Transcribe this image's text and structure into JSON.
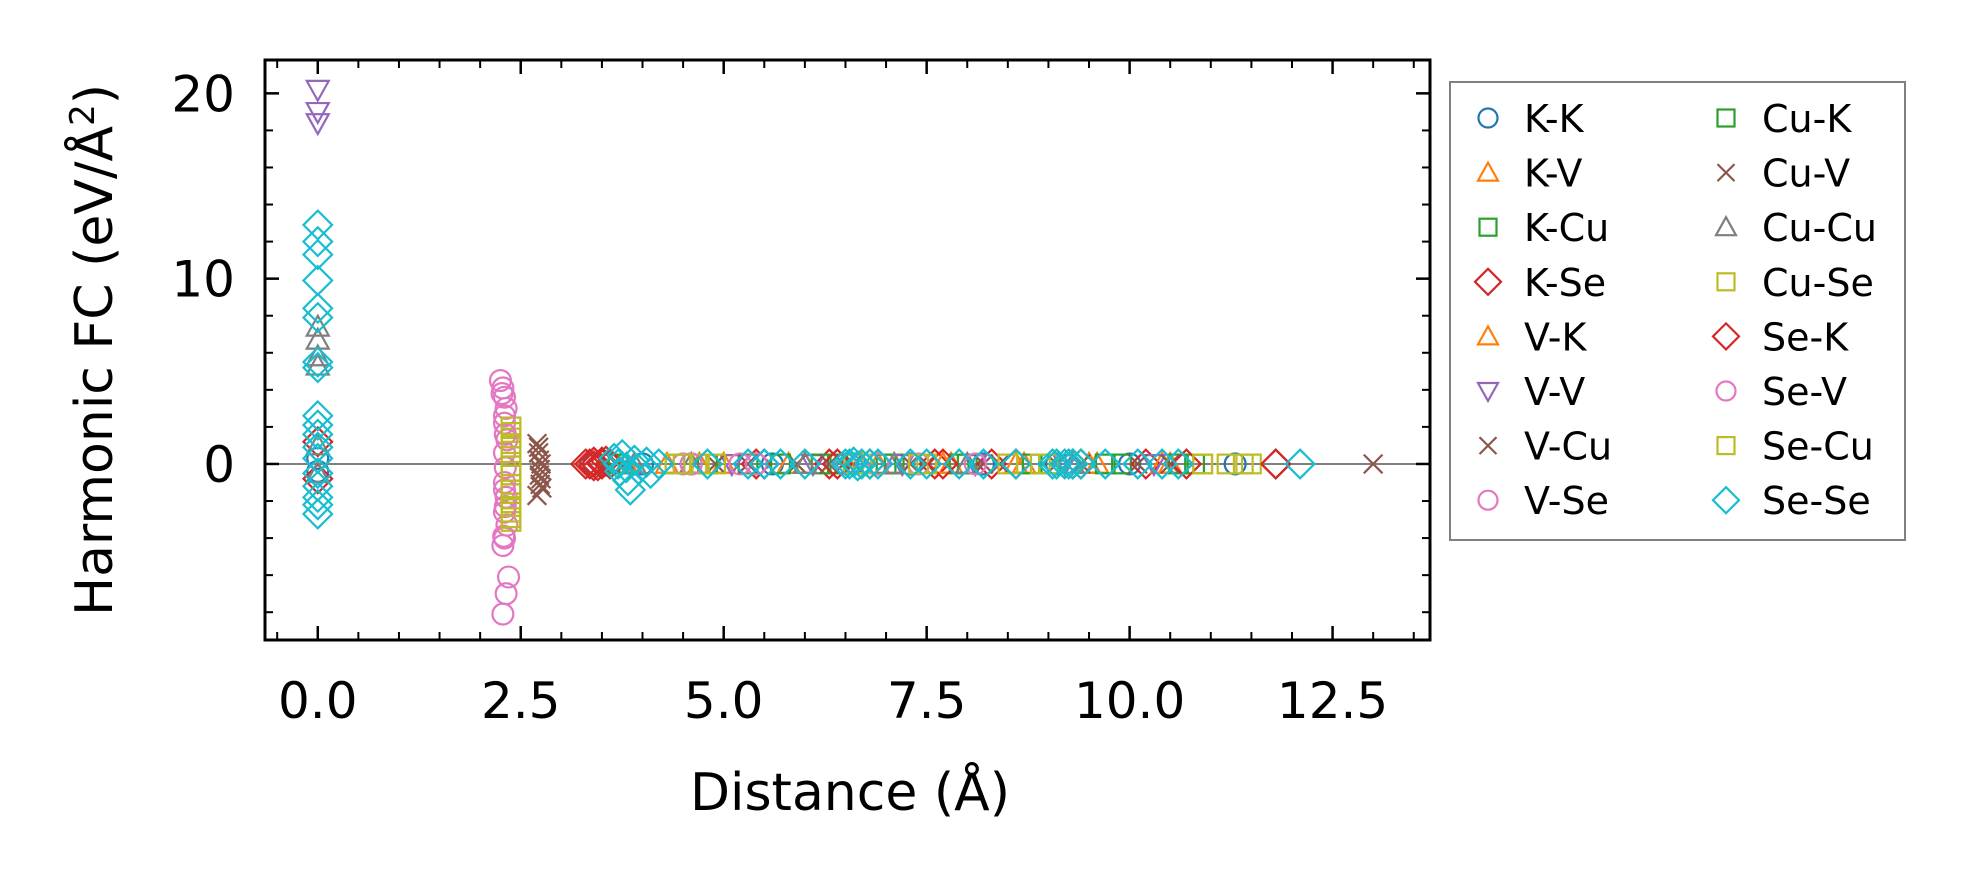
{
  "chart_data": {
    "type": "scatter",
    "title": "",
    "xlabel": "Distance (Å)",
    "ylabel_prefix": "Harmonic FC (eV/Å",
    "ylabel_sup": "2",
    "ylabel_suffix": ")",
    "xlim": [
      -0.65,
      13.7
    ],
    "ylim": [
      -9.5,
      21.8
    ],
    "x_ticks": [
      0.0,
      2.5,
      5.0,
      7.5,
      10.0,
      12.5
    ],
    "x_tick_labels": [
      "0.0",
      "2.5",
      "5.0",
      "7.5",
      "10.0",
      "12.5"
    ],
    "y_ticks": [
      0,
      10,
      20
    ],
    "y_tick_labels": [
      "0",
      "10",
      "20"
    ],
    "zero_line": true,
    "legend_position": "outside-right",
    "series": [
      {
        "name": "K-K",
        "marker": "circle",
        "color": "#1f77b4",
        "points": [
          [
            0,
            0.3
          ],
          [
            0,
            -0.4
          ],
          [
            3.4,
            0
          ],
          [
            4.0,
            0
          ],
          [
            4.6,
            0
          ],
          [
            5.6,
            0
          ],
          [
            6.6,
            0
          ],
          [
            7.3,
            0
          ],
          [
            8.2,
            0
          ],
          [
            9.1,
            0
          ],
          [
            10.0,
            0
          ],
          [
            11.3,
            0
          ]
        ]
      },
      {
        "name": "K-V",
        "marker": "triangle-up",
        "color": "#ff7f0e",
        "points": [
          [
            3.8,
            0
          ],
          [
            4.3,
            0
          ],
          [
            5.0,
            0
          ],
          [
            6.0,
            0
          ],
          [
            6.9,
            0
          ],
          [
            7.8,
            0
          ],
          [
            8.7,
            0
          ],
          [
            9.6,
            0
          ],
          [
            10.5,
            0
          ]
        ]
      },
      {
        "name": "K-Cu",
        "marker": "square",
        "color": "#2ca02c",
        "points": [
          [
            3.6,
            0
          ],
          [
            4.4,
            0
          ],
          [
            5.3,
            0
          ],
          [
            6.4,
            0
          ],
          [
            7.1,
            0
          ],
          [
            8.0,
            0
          ],
          [
            9.0,
            0
          ],
          [
            9.9,
            0
          ],
          [
            10.8,
            0
          ]
        ]
      },
      {
        "name": "K-Se",
        "marker": "diamond",
        "color": "#d62728",
        "points": [
          [
            0,
            1.2
          ],
          [
            0,
            -0.8
          ],
          [
            3.3,
            0
          ],
          [
            3.4,
            0.1
          ],
          [
            3.45,
            -0.1
          ],
          [
            3.5,
            0
          ],
          [
            3.55,
            0.15
          ],
          [
            5.4,
            0
          ],
          [
            6.3,
            0
          ],
          [
            6.8,
            0
          ],
          [
            7.6,
            0
          ],
          [
            8.3,
            0
          ],
          [
            9.3,
            0
          ],
          [
            10.2,
            0
          ],
          [
            11.8,
            0
          ]
        ]
      },
      {
        "name": "V-K",
        "marker": "triangle-up",
        "color": "#ff7f0e",
        "points": [
          [
            3.9,
            0
          ],
          [
            4.7,
            0
          ],
          [
            5.8,
            0
          ],
          [
            6.7,
            0
          ],
          [
            7.7,
            0
          ],
          [
            8.6,
            0
          ],
          [
            9.5,
            0
          ],
          [
            10.4,
            0
          ]
        ]
      },
      {
        "name": "V-V",
        "marker": "triangle-down",
        "color": "#9467bd",
        "points": [
          [
            0,
            20.2
          ],
          [
            0,
            19.0
          ],
          [
            0,
            18.4
          ],
          [
            5.1,
            0
          ],
          [
            6.1,
            0
          ],
          [
            7.2,
            0
          ],
          [
            8.1,
            0
          ],
          [
            9.2,
            0
          ],
          [
            10.3,
            0
          ]
        ]
      },
      {
        "name": "V-Cu",
        "marker": "x",
        "color": "#8c564b",
        "points": [
          [
            2.7,
            1.1
          ],
          [
            2.72,
            0.6
          ],
          [
            2.73,
            0.2
          ],
          [
            2.74,
            -0.3
          ],
          [
            2.75,
            -0.8
          ],
          [
            2.76,
            -1.3
          ],
          [
            2.7,
            -1.7
          ],
          [
            4.9,
            0
          ],
          [
            5.9,
            0
          ],
          [
            6.6,
            0
          ],
          [
            7.5,
            0
          ],
          [
            8.4,
            0
          ],
          [
            9.4,
            0
          ],
          [
            10.1,
            0
          ],
          [
            13.0,
            0
          ]
        ]
      },
      {
        "name": "V-Se",
        "marker": "circle",
        "color": "#e377c2",
        "points": [
          [
            2.25,
            4.5
          ],
          [
            2.28,
            4.1
          ],
          [
            2.3,
            3.6
          ],
          [
            2.32,
            3.0
          ],
          [
            2.3,
            2.2
          ],
          [
            2.33,
            1.3
          ],
          [
            2.3,
            0.6
          ],
          [
            2.31,
            -0.2
          ],
          [
            2.3,
            -1.0
          ],
          [
            2.32,
            -1.8
          ],
          [
            2.3,
            -2.6
          ],
          [
            2.33,
            -3.3
          ],
          [
            2.3,
            -4.0
          ],
          [
            2.28,
            -4.4
          ],
          [
            2.35,
            -6.1
          ],
          [
            2.32,
            -7.0
          ],
          [
            2.28,
            -8.1
          ],
          [
            4.5,
            0
          ],
          [
            5.2,
            0
          ],
          [
            6.5,
            0
          ],
          [
            7.4,
            0
          ]
        ]
      },
      {
        "name": "Cu-K",
        "marker": "square",
        "color": "#2ca02c",
        "points": [
          [
            3.7,
            0
          ],
          [
            4.8,
            0
          ],
          [
            5.7,
            0
          ],
          [
            6.2,
            0
          ],
          [
            7.0,
            0
          ],
          [
            7.9,
            0
          ],
          [
            8.8,
            0
          ],
          [
            9.7,
            0
          ],
          [
            10.6,
            0
          ]
        ]
      },
      {
        "name": "Cu-V",
        "marker": "x",
        "color": "#8c564b",
        "points": [
          [
            2.72,
            0.9
          ],
          [
            2.75,
            0.0
          ],
          [
            2.73,
            -0.6
          ],
          [
            2.74,
            -1.1
          ],
          [
            5.3,
            0
          ],
          [
            6.3,
            0
          ],
          [
            7.3,
            0
          ],
          [
            8.2,
            0
          ],
          [
            9.1,
            0
          ],
          [
            10.5,
            0
          ]
        ]
      },
      {
        "name": "Cu-Cu",
        "marker": "triangle-up",
        "color": "#7f7f7f",
        "points": [
          [
            0,
            7.4
          ],
          [
            0,
            6.7
          ],
          [
            0,
            5.8
          ],
          [
            0,
            5.3
          ],
          [
            0,
            1.0
          ],
          [
            0,
            -0.5
          ],
          [
            3.9,
            0
          ],
          [
            4.6,
            0
          ],
          [
            6.0,
            0
          ],
          [
            7.1,
            0
          ],
          [
            8.0,
            0
          ],
          [
            9.3,
            0
          ]
        ]
      },
      {
        "name": "Cu-Se",
        "marker": "square",
        "color": "#bcbd22",
        "points": [
          [
            2.38,
            2.0
          ],
          [
            2.38,
            1.4
          ],
          [
            2.38,
            0.9
          ],
          [
            2.38,
            0.4
          ],
          [
            2.38,
            -0.1
          ],
          [
            2.38,
            -0.6
          ],
          [
            2.38,
            -1.1
          ],
          [
            2.38,
            -1.6
          ],
          [
            2.38,
            -2.1
          ],
          [
            2.38,
            -2.6
          ],
          [
            2.38,
            -3.1
          ],
          [
            4.4,
            0
          ],
          [
            4.7,
            0
          ],
          [
            6.7,
            0
          ],
          [
            7.4,
            0
          ],
          [
            8.5,
            0
          ],
          [
            9.0,
            0
          ],
          [
            10.9,
            0
          ],
          [
            11.2,
            0
          ],
          [
            11.5,
            0
          ]
        ]
      },
      {
        "name": "Se-K",
        "marker": "diamond",
        "color": "#d62728",
        "points": [
          [
            3.35,
            0
          ],
          [
            3.4,
            -0.1
          ],
          [
            3.5,
            0.1
          ],
          [
            3.6,
            0
          ],
          [
            5.5,
            0
          ],
          [
            6.4,
            0
          ],
          [
            7.7,
            0
          ],
          [
            8.6,
            0
          ],
          [
            9.4,
            0
          ],
          [
            10.7,
            0
          ],
          [
            11.8,
            0
          ]
        ]
      },
      {
        "name": "Se-V",
        "marker": "circle",
        "color": "#e377c2",
        "points": [
          [
            2.27,
            3.8
          ],
          [
            2.3,
            2.6
          ],
          [
            2.31,
            1.6
          ],
          [
            2.3,
            -1.4
          ],
          [
            2.31,
            -2.3
          ],
          [
            2.29,
            -3.9
          ],
          [
            4.6,
            0
          ],
          [
            5.4,
            0
          ],
          [
            6.9,
            0
          ],
          [
            8.1,
            0
          ]
        ]
      },
      {
        "name": "Se-Cu",
        "marker": "square",
        "color": "#bcbd22",
        "points": [
          [
            2.38,
            1.7
          ],
          [
            2.38,
            1.1
          ],
          [
            2.38,
            -0.4
          ],
          [
            2.38,
            -1.4
          ],
          [
            2.38,
            -2.3
          ],
          [
            2.38,
            -2.9
          ],
          [
            4.5,
            0
          ],
          [
            4.9,
            0
          ],
          [
            6.6,
            0
          ],
          [
            7.5,
            0
          ],
          [
            8.9,
            0
          ],
          [
            10.9,
            0
          ],
          [
            11.4,
            0
          ]
        ]
      },
      {
        "name": "Se-Se",
        "marker": "diamond",
        "color": "#17becf",
        "points": [
          [
            0,
            12.9
          ],
          [
            0,
            12.0
          ],
          [
            0,
            11.3
          ],
          [
            0,
            9.9
          ],
          [
            0,
            8.4
          ],
          [
            0,
            7.9
          ],
          [
            0,
            5.5
          ],
          [
            0,
            5.2
          ],
          [
            0,
            2.6
          ],
          [
            0,
            2.1
          ],
          [
            0,
            1.6
          ],
          [
            0,
            0.9
          ],
          [
            0,
            0.3
          ],
          [
            0,
            -0.5
          ],
          [
            0,
            -1.2
          ],
          [
            0,
            -1.8
          ],
          [
            0,
            -2.2
          ],
          [
            0,
            -2.7
          ],
          [
            3.65,
            0.3
          ],
          [
            3.7,
            0
          ],
          [
            3.72,
            -0.4
          ],
          [
            3.75,
            0.5
          ],
          [
            3.8,
            -0.2
          ],
          [
            3.82,
            -0.9
          ],
          [
            3.85,
            -1.4
          ],
          [
            3.9,
            0.2
          ],
          [
            3.95,
            -0.3
          ],
          [
            4.05,
            0.1
          ],
          [
            4.1,
            -0.5
          ],
          [
            4.2,
            0
          ],
          [
            4.8,
            0
          ],
          [
            5.3,
            0
          ],
          [
            5.5,
            0
          ],
          [
            5.7,
            0
          ],
          [
            6.0,
            0
          ],
          [
            6.5,
            0
          ],
          [
            6.55,
            0
          ],
          [
            6.6,
            0.1
          ],
          [
            6.65,
            -0.1
          ],
          [
            6.7,
            0
          ],
          [
            6.8,
            0
          ],
          [
            6.9,
            0
          ],
          [
            7.3,
            0
          ],
          [
            7.5,
            0
          ],
          [
            7.9,
            0
          ],
          [
            8.2,
            0
          ],
          [
            8.6,
            0
          ],
          [
            9.05,
            0
          ],
          [
            9.1,
            0
          ],
          [
            9.2,
            0
          ],
          [
            9.25,
            0
          ],
          [
            9.3,
            0
          ],
          [
            9.4,
            0
          ],
          [
            9.7,
            0
          ],
          [
            10.1,
            0
          ],
          [
            10.4,
            0
          ],
          [
            10.6,
            0
          ],
          [
            12.1,
            0
          ]
        ]
      }
    ]
  }
}
